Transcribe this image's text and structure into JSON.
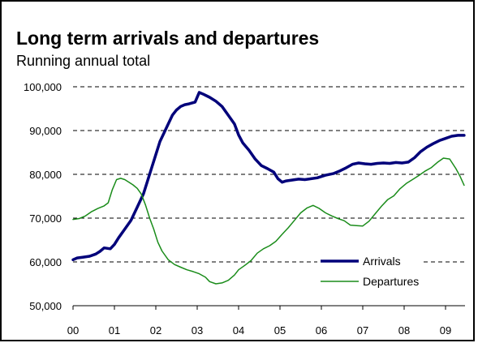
{
  "chart_data": {
    "type": "line",
    "title": "Long term arrivals and departures",
    "subtitle": "Running annual total",
    "xlabel": "",
    "ylabel": "",
    "ylim": [
      50000,
      100000
    ],
    "xlim": [
      0,
      9.45
    ],
    "y_ticks": [
      "50,000",
      "60,000",
      "70,000",
      "80,000",
      "90,000",
      "100,000"
    ],
    "x_ticks": [
      "00",
      "01",
      "02",
      "03",
      "04",
      "05",
      "06",
      "07",
      "08",
      "09"
    ],
    "grid": "horizontal dashed",
    "legend_position": "bottom-right",
    "series": [
      {
        "name": "Arrivals",
        "color": "#00007a",
        "points": [
          [
            0.0,
            60500
          ],
          [
            0.1,
            60900
          ],
          [
            0.25,
            61100
          ],
          [
            0.4,
            61300
          ],
          [
            0.55,
            61800
          ],
          [
            0.65,
            62400
          ],
          [
            0.75,
            63200
          ],
          [
            0.9,
            63000
          ],
          [
            1.0,
            64000
          ],
          [
            1.1,
            65500
          ],
          [
            1.25,
            67500
          ],
          [
            1.4,
            69500
          ],
          [
            1.55,
            72500
          ],
          [
            1.7,
            75500
          ],
          [
            1.8,
            78500
          ],
          [
            1.9,
            81500
          ],
          [
            2.0,
            84500
          ],
          [
            2.1,
            87500
          ],
          [
            2.2,
            89500
          ],
          [
            2.3,
            91500
          ],
          [
            2.4,
            93500
          ],
          [
            2.5,
            94700
          ],
          [
            2.6,
            95500
          ],
          [
            2.7,
            95900
          ],
          [
            2.8,
            96100
          ],
          [
            2.95,
            96500
          ],
          [
            3.05,
            98700
          ],
          [
            3.15,
            98300
          ],
          [
            3.3,
            97600
          ],
          [
            3.45,
            96700
          ],
          [
            3.6,
            95500
          ],
          [
            3.75,
            93500
          ],
          [
            3.9,
            91500
          ],
          [
            4.0,
            89000
          ],
          [
            4.1,
            87200
          ],
          [
            4.25,
            85500
          ],
          [
            4.4,
            83500
          ],
          [
            4.55,
            82000
          ],
          [
            4.7,
            81300
          ],
          [
            4.85,
            80500
          ],
          [
            4.95,
            79000
          ],
          [
            5.05,
            78200
          ],
          [
            5.15,
            78500
          ],
          [
            5.3,
            78700
          ],
          [
            5.45,
            78900
          ],
          [
            5.6,
            78800
          ],
          [
            5.75,
            79000
          ],
          [
            5.9,
            79200
          ],
          [
            6.0,
            79500
          ],
          [
            6.1,
            79800
          ],
          [
            6.3,
            80200
          ],
          [
            6.45,
            80800
          ],
          [
            6.6,
            81500
          ],
          [
            6.75,
            82300
          ],
          [
            6.9,
            82600
          ],
          [
            7.05,
            82400
          ],
          [
            7.2,
            82300
          ],
          [
            7.35,
            82500
          ],
          [
            7.5,
            82600
          ],
          [
            7.65,
            82500
          ],
          [
            7.8,
            82700
          ],
          [
            7.95,
            82600
          ],
          [
            8.1,
            82800
          ],
          [
            8.25,
            83800
          ],
          [
            8.4,
            85200
          ],
          [
            8.55,
            86200
          ],
          [
            8.7,
            87000
          ],
          [
            8.85,
            87700
          ],
          [
            9.0,
            88200
          ],
          [
            9.15,
            88700
          ],
          [
            9.3,
            88900
          ],
          [
            9.45,
            88900
          ]
        ]
      },
      {
        "name": "Departures",
        "color": "#1a8c1a",
        "points": [
          [
            0.0,
            69700
          ],
          [
            0.15,
            69900
          ],
          [
            0.3,
            70500
          ],
          [
            0.45,
            71500
          ],
          [
            0.6,
            72200
          ],
          [
            0.75,
            72800
          ],
          [
            0.85,
            73500
          ],
          [
            0.95,
            76500
          ],
          [
            1.05,
            78800
          ],
          [
            1.15,
            79100
          ],
          [
            1.25,
            78800
          ],
          [
            1.35,
            78200
          ],
          [
            1.45,
            77600
          ],
          [
            1.55,
            76800
          ],
          [
            1.65,
            75500
          ],
          [
            1.75,
            73000
          ],
          [
            1.85,
            70000
          ],
          [
            1.95,
            67500
          ],
          [
            2.05,
            64500
          ],
          [
            2.15,
            62500
          ],
          [
            2.3,
            60500
          ],
          [
            2.45,
            59400
          ],
          [
            2.6,
            58800
          ],
          [
            2.75,
            58200
          ],
          [
            2.9,
            57800
          ],
          [
            3.05,
            57300
          ],
          [
            3.2,
            56500
          ],
          [
            3.3,
            55500
          ],
          [
            3.45,
            55000
          ],
          [
            3.6,
            55200
          ],
          [
            3.75,
            55800
          ],
          [
            3.9,
            57000
          ],
          [
            4.0,
            58200
          ],
          [
            4.15,
            59200
          ],
          [
            4.3,
            60300
          ],
          [
            4.45,
            62000
          ],
          [
            4.6,
            63000
          ],
          [
            4.75,
            63700
          ],
          [
            4.9,
            64700
          ],
          [
            5.05,
            66300
          ],
          [
            5.2,
            67800
          ],
          [
            5.35,
            69500
          ],
          [
            5.5,
            71200
          ],
          [
            5.65,
            72300
          ],
          [
            5.8,
            72900
          ],
          [
            5.95,
            72200
          ],
          [
            6.1,
            71200
          ],
          [
            6.25,
            70500
          ],
          [
            6.4,
            69900
          ],
          [
            6.55,
            69400
          ],
          [
            6.7,
            68400
          ],
          [
            6.85,
            68300
          ],
          [
            7.0,
            68200
          ],
          [
            7.15,
            69300
          ],
          [
            7.3,
            71000
          ],
          [
            7.45,
            72700
          ],
          [
            7.6,
            74200
          ],
          [
            7.75,
            75100
          ],
          [
            7.9,
            76700
          ],
          [
            8.05,
            77900
          ],
          [
            8.2,
            78800
          ],
          [
            8.35,
            79700
          ],
          [
            8.5,
            80700
          ],
          [
            8.65,
            81500
          ],
          [
            8.8,
            82700
          ],
          [
            8.95,
            83700
          ],
          [
            9.1,
            83500
          ],
          [
            9.25,
            81300
          ],
          [
            9.35,
            79600
          ],
          [
            9.45,
            77500
          ]
        ]
      }
    ]
  }
}
